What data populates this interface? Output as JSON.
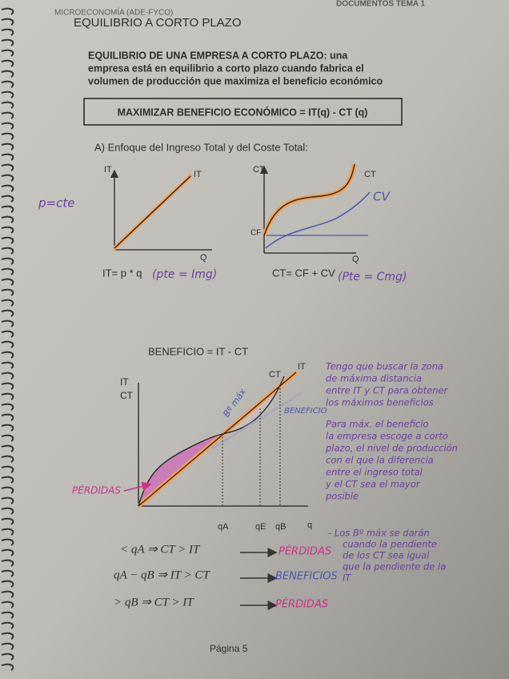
{
  "header": {
    "course": "MICROECONOMÍA (ADE-FYCO)",
    "document": "DOCUMENTOS TEMA 1",
    "title": "EQUILIBRIO A CORTO PLAZO"
  },
  "intro": {
    "lines": [
      "EQUILIBRIO DE UNA EMPRESA A CORTO PLAZO: una",
      "empresa está en equilibrio a corto plazo cuando fabrica el",
      "volumen de producción que maximiza el beneficio económico"
    ]
  },
  "box": "MAXIMIZAR BENEFICIO ECONÓMICO = IT(q) - CT (q)",
  "section": "A) Enfoque del Ingreso Total y del Coste Total:",
  "graph_it": {
    "y_label": "IT",
    "curve_label": "IT",
    "x_label": "Q",
    "note": "p=cte",
    "formula": "IT= p * q",
    "handwritten": "(pte = Img)"
  },
  "graph_ct": {
    "y_label": "CT",
    "ct_label": "CT",
    "cv_label": "CV",
    "cf_label": "CF",
    "x_label": "Q",
    "formula": "CT= CF + CV",
    "handwritten": "(Pte = Cmg)"
  },
  "graph_profit": {
    "title": "BENEFICIO = IT - CT",
    "y_label_it": "IT",
    "y_label_ct": "CT",
    "it_label": "IT",
    "ct_label": "CT",
    "x_label": "q",
    "ticks": [
      "qA",
      "qE",
      "qB"
    ],
    "max_note": "Bº máx",
    "profit_note": "BENEFICIO",
    "loss_note": "PÉRDIDAS"
  },
  "notes": [
    {
      "lines": [
        "Tengo que buscar la zona",
        "de máxima distancia",
        "entre IT y CT para obtener",
        "los máximos beneficios"
      ]
    },
    {
      "lines": [
        "Para máx. el beneficio",
        "la empresa escoge a corto",
        "plazo, el nivel de producción",
        "con el que la diferencia",
        "entre el ingreso total",
        "y el CT sea el mayor",
        "posible"
      ]
    },
    {
      "lines": [
        "- Los Bº máx se darán",
        "cuando la pendiente",
        "de los CT sea igual",
        "que la pendiente de la",
        "IT"
      ]
    }
  ],
  "conditions": [
    {
      "text": "< qA ⇒ CT > IT",
      "result": "PÉRDIDAS"
    },
    {
      "text": "qA − qB ⇒ IT > CT",
      "result": "BENEFICIOS"
    },
    {
      "text": "> qB ⇒ CT > IT",
      "result": "PÉRDIDAS"
    }
  ],
  "footer": "Página 5"
}
